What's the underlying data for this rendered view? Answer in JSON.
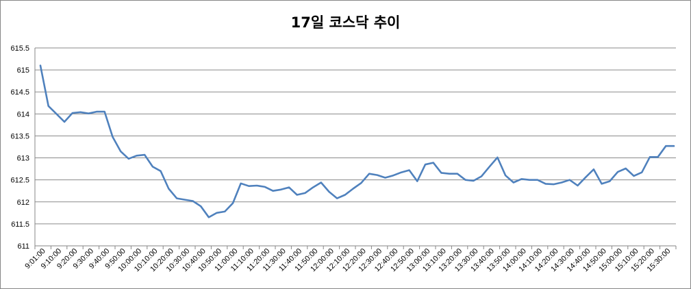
{
  "chart_data": {
    "type": "line",
    "title": "17일 코스닥 추이",
    "xlabel": "",
    "ylabel": "",
    "ylim": [
      611,
      615.5
    ],
    "y_ticks": [
      "611",
      "611.5",
      "612",
      "612.5",
      "613",
      "613.5",
      "614",
      "614.5",
      "615",
      "615.5"
    ],
    "x_tick_labels": [
      "9:01:00",
      "9:10:00",
      "9:20:00",
      "9:30:00",
      "9:40:00",
      "9:50:00",
      "10:00:00",
      "10:10:00",
      "10:20:00",
      "10:30:00",
      "10:40:00",
      "10:50:00",
      "11:00:00",
      "11:10:00",
      "11:20:00",
      "11:30:00",
      "11:40:00",
      "11:50:00",
      "12:00:00",
      "12:10:00",
      "12:20:00",
      "12:30:00",
      "12:40:00",
      "12:50:00",
      "13:00:00",
      "13:10:00",
      "13:20:00",
      "13:30:00",
      "13:40:00",
      "13:50:00",
      "14:00:00",
      "14:10:00",
      "14:20:00",
      "14:30:00",
      "14:40:00",
      "14:50:00",
      "15:00:00",
      "15:10:00",
      "15:20:00",
      "15:30:00"
    ],
    "grid": true,
    "legend": "none",
    "line_color": "#4F81BD",
    "series": [
      {
        "values": [
          615.1,
          614.18,
          614.0,
          613.82,
          614.02,
          614.04,
          614.01,
          614.05,
          614.05,
          613.48,
          613.15,
          612.98,
          613.05,
          613.07,
          612.8,
          612.7,
          612.3,
          612.08,
          612.05,
          612.02,
          611.9,
          611.65,
          611.75,
          611.78,
          611.97,
          612.42,
          612.36,
          612.37,
          612.34,
          612.25,
          612.28,
          612.33,
          612.16,
          612.2,
          612.33,
          612.44,
          612.23,
          612.08,
          612.16,
          612.3,
          612.43,
          612.64,
          612.61,
          612.55,
          612.6,
          612.67,
          612.72,
          612.47,
          612.85,
          612.89,
          612.66,
          612.64,
          612.64,
          612.5,
          612.48,
          612.58,
          612.8,
          613.01,
          612.6,
          612.44,
          612.52,
          612.5,
          612.5,
          612.41,
          612.4,
          612.44,
          612.5,
          612.37,
          612.56,
          612.74,
          612.41,
          612.47,
          612.68,
          612.76,
          612.59,
          612.67,
          613.02,
          613.02,
          613.27,
          613.27
        ]
      }
    ]
  }
}
